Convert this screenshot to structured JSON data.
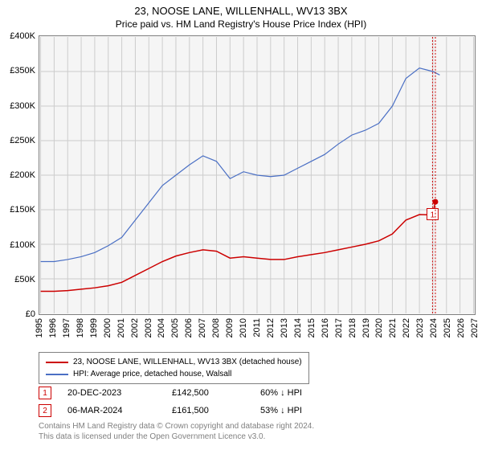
{
  "title": "23, NOOSE LANE, WILLENHALL, WV13 3BX",
  "subtitle": "Price paid vs. HM Land Registry's House Price Index (HPI)",
  "chart": {
    "type": "line",
    "background_color": "#f5f5f5",
    "grid_color": "#cccccc",
    "border_color": "#808080",
    "x_years": [
      1995,
      1996,
      1997,
      1998,
      1999,
      2000,
      2001,
      2002,
      2003,
      2004,
      2005,
      2006,
      2007,
      2008,
      2009,
      2010,
      2011,
      2012,
      2013,
      2014,
      2015,
      2016,
      2017,
      2018,
      2019,
      2020,
      2021,
      2022,
      2023,
      2024,
      2025,
      2026,
      2027
    ],
    "xlim": [
      1995,
      2027
    ],
    "ylim": [
      0,
      400000
    ],
    "ytick_step": 50000,
    "yticks": [
      "£0",
      "£50K",
      "£100K",
      "£150K",
      "£200K",
      "£250K",
      "£300K",
      "£350K",
      "£400K"
    ],
    "series": [
      {
        "name": "23, NOOSE LANE, WILLENHALL, WV13 3BX (detached house)",
        "color": "#cc0000",
        "width": 1.5,
        "data": [
          [
            1995,
            32000
          ],
          [
            1996,
            32000
          ],
          [
            1997,
            33000
          ],
          [
            1998,
            35000
          ],
          [
            1999,
            37000
          ],
          [
            2000,
            40000
          ],
          [
            2001,
            45000
          ],
          [
            2002,
            55000
          ],
          [
            2003,
            65000
          ],
          [
            2004,
            75000
          ],
          [
            2005,
            83000
          ],
          [
            2006,
            88000
          ],
          [
            2007,
            92000
          ],
          [
            2008,
            90000
          ],
          [
            2009,
            80000
          ],
          [
            2010,
            82000
          ],
          [
            2011,
            80000
          ],
          [
            2012,
            78000
          ],
          [
            2013,
            78000
          ],
          [
            2014,
            82000
          ],
          [
            2015,
            85000
          ],
          [
            2016,
            88000
          ],
          [
            2017,
            92000
          ],
          [
            2018,
            96000
          ],
          [
            2019,
            100000
          ],
          [
            2020,
            105000
          ],
          [
            2021,
            115000
          ],
          [
            2022,
            135000
          ],
          [
            2023,
            143000
          ],
          [
            2023.97,
            142500
          ],
          [
            2024.18,
            161500
          ]
        ]
      },
      {
        "name": "HPI: Average price, detached house, Walsall",
        "color": "#4a6fc4",
        "width": 1.2,
        "data": [
          [
            1995,
            75000
          ],
          [
            1996,
            75000
          ],
          [
            1997,
            78000
          ],
          [
            1998,
            82000
          ],
          [
            1999,
            88000
          ],
          [
            2000,
            98000
          ],
          [
            2001,
            110000
          ],
          [
            2002,
            135000
          ],
          [
            2003,
            160000
          ],
          [
            2004,
            185000
          ],
          [
            2005,
            200000
          ],
          [
            2006,
            215000
          ],
          [
            2007,
            228000
          ],
          [
            2008,
            220000
          ],
          [
            2009,
            195000
          ],
          [
            2010,
            205000
          ],
          [
            2011,
            200000
          ],
          [
            2012,
            198000
          ],
          [
            2013,
            200000
          ],
          [
            2014,
            210000
          ],
          [
            2015,
            220000
          ],
          [
            2016,
            230000
          ],
          [
            2017,
            245000
          ],
          [
            2018,
            258000
          ],
          [
            2019,
            265000
          ],
          [
            2020,
            275000
          ],
          [
            2021,
            300000
          ],
          [
            2022,
            340000
          ],
          [
            2023,
            355000
          ],
          [
            2024,
            350000
          ],
          [
            2024.5,
            345000
          ]
        ]
      }
    ],
    "markers": [
      {
        "n": "1",
        "x": 2023.97,
        "y": 142500,
        "color": "#cc0000",
        "dot_y": 142500
      },
      {
        "n": "2",
        "x": 2024.18,
        "y": 161500,
        "color": "#cc0000",
        "dot_y": 161500,
        "label_offset_y": -280
      }
    ]
  },
  "legend": {
    "s1_color": "#cc0000",
    "s1_label": "23, NOOSE LANE, WILLENHALL, WV13 3BX (detached house)",
    "s2_color": "#4a6fc4",
    "s2_label": "HPI: Average price, detached house, Walsall"
  },
  "marker_rows": [
    {
      "n": "1",
      "color": "#cc0000",
      "date": "20-DEC-2023",
      "price": "£142,500",
      "pct": "60% ↓ HPI"
    },
    {
      "n": "2",
      "color": "#cc0000",
      "date": "06-MAR-2024",
      "price": "£161,500",
      "pct": "53% ↓ HPI"
    }
  ],
  "footer1": "Contains HM Land Registry data © Crown copyright and database right 2024.",
  "footer2": "This data is licensed under the Open Government Licence v3.0."
}
